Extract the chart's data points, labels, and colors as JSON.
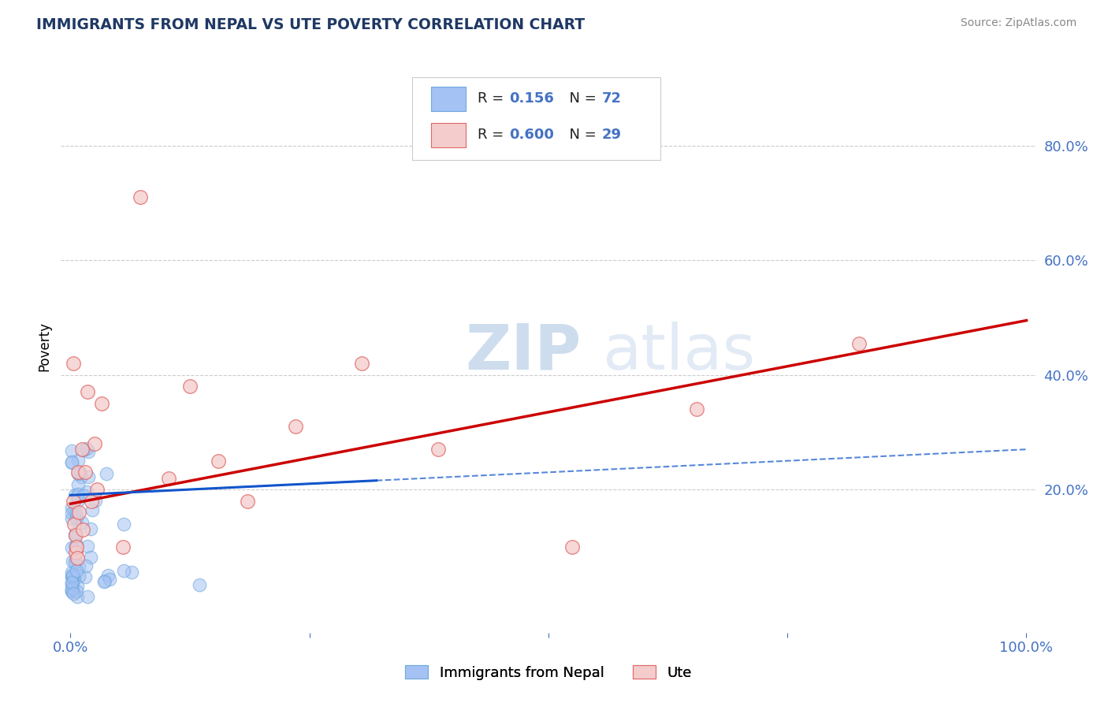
{
  "title": "IMMIGRANTS FROM NEPAL VS UTE POVERTY CORRELATION CHART",
  "source": "Source: ZipAtlas.com",
  "xlabel_blue": "Immigrants from Nepal",
  "xlabel_pink": "Ute",
  "ylabel": "Poverty",
  "legend_blue_R": "0.156",
  "legend_blue_N": "72",
  "legend_pink_R": "0.600",
  "legend_pink_N": "29",
  "xlim": [
    -0.01,
    1.01
  ],
  "ylim": [
    -0.05,
    0.95
  ],
  "ytick_positions": [
    0.2,
    0.4,
    0.6,
    0.8
  ],
  "ytick_labels": [
    "20.0%",
    "40.0%",
    "60.0%",
    "80.0%"
  ],
  "blue_color": "#a4c2f4",
  "blue_edge_color": "#6fa8dc",
  "pink_color": "#f4cccc",
  "pink_edge_color": "#e06666",
  "blue_line_color": "#1155cc",
  "pink_line_color": "#cc0000",
  "grid_color": "#cccccc",
  "blue_scatter_seed": 12,
  "pink_scatter_seed": 7,
  "blue_N": 72,
  "pink_N": 29,
  "blue_line_slope": 0.08,
  "blue_line_intercept": 0.19,
  "pink_line_slope": 0.32,
  "pink_line_intercept": 0.175,
  "pink_points_x": [
    0.003,
    0.003,
    0.004,
    0.005,
    0.005,
    0.006,
    0.007,
    0.008,
    0.009,
    0.012,
    0.013,
    0.015,
    0.018,
    0.022,
    0.025,
    0.028,
    0.033,
    0.055,
    0.073,
    0.103,
    0.125,
    0.155,
    0.185,
    0.235,
    0.305,
    0.385,
    0.525,
    0.655,
    0.825
  ],
  "pink_points_y": [
    0.42,
    0.18,
    0.14,
    0.12,
    0.09,
    0.1,
    0.08,
    0.23,
    0.16,
    0.27,
    0.13,
    0.23,
    0.37,
    0.18,
    0.28,
    0.2,
    0.35,
    0.1,
    0.71,
    0.22,
    0.38,
    0.25,
    0.18,
    0.31,
    0.42,
    0.27,
    0.1,
    0.34,
    0.455
  ]
}
